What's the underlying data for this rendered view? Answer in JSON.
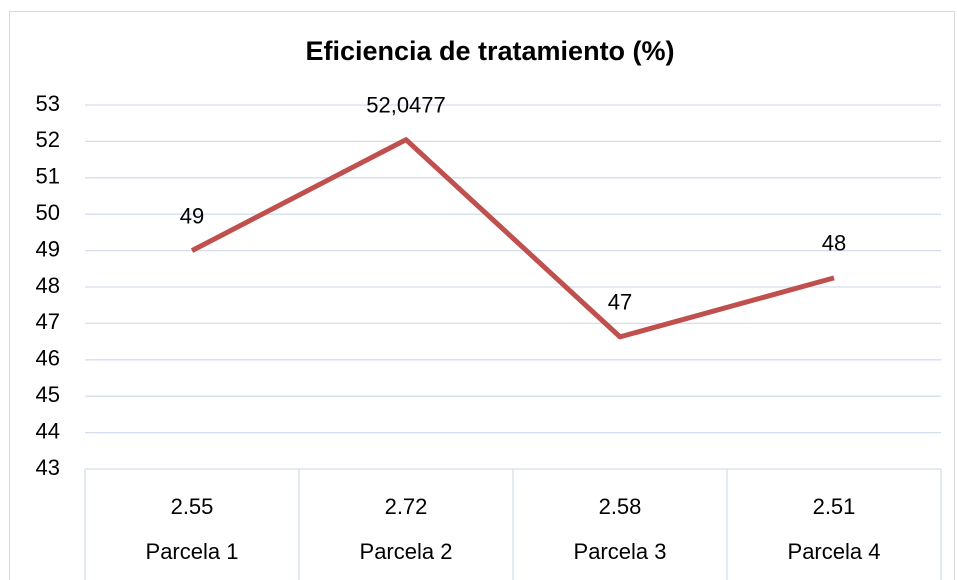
{
  "chart_data": {
    "type": "line",
    "title": "Eficiencia de tratamiento (%)",
    "categories": [
      "Parcela 1",
      "Parcela 2",
      "Parcela 3",
      "Parcela 4"
    ],
    "category_sublabels": [
      "2.55",
      "2.72",
      "2.58",
      "2.51"
    ],
    "series": [
      {
        "color": "#c0504d",
        "values": [
          49,
          52.0477,
          46.63,
          48.25
        ],
        "value_labels": [
          "49",
          "52,0477",
          "47",
          "48"
        ]
      }
    ],
    "ylim": [
      43,
      53
    ],
    "yticks": [
      43,
      44,
      45,
      46,
      47,
      48,
      49,
      50,
      51,
      52,
      53
    ],
    "grid": true
  }
}
